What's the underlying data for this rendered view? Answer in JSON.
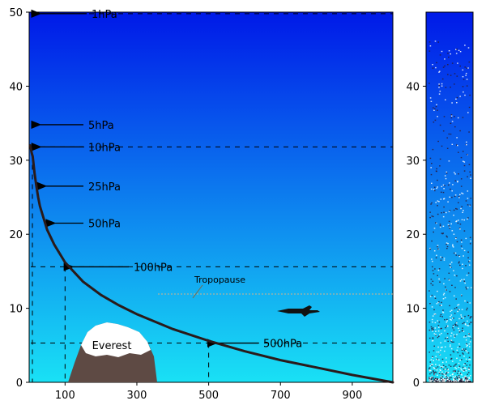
{
  "colors": {
    "sky_top": "#0019e8",
    "sky_bottom": "#19e1f5",
    "curve": "#2a1a1a",
    "mountain": "#5e4a44",
    "snow": "#ffffff",
    "tropopause_line": "#d2b48c"
  },
  "chart_data": {
    "type": "line",
    "left_panel": {
      "x_ticks": [
        "100",
        "300",
        "500",
        "700",
        "900"
      ],
      "x_tick_values": [
        100,
        300,
        500,
        700,
        900
      ],
      "y_ticks": [
        "0",
        "10",
        "20",
        "30",
        "40",
        "50"
      ],
      "y_tick_values": [
        0,
        10,
        20,
        30,
        40,
        50
      ],
      "xlim": [
        0,
        1013
      ],
      "ylim": [
        0,
        50
      ],
      "pressure_curve": {
        "x": [
          1013,
          900,
          800,
          700,
          600,
          500,
          400,
          300,
          250,
          200,
          150,
          100,
          70,
          50,
          30,
          25,
          20,
          15,
          10,
          7,
          5,
          3
        ],
        "y": [
          0,
          1.0,
          2.0,
          3.0,
          4.2,
          5.6,
          7.2,
          9.2,
          10.4,
          11.8,
          13.6,
          16.2,
          18.6,
          20.6,
          23.8,
          25.0,
          26.5,
          28.3,
          30.5,
          31.0,
          31.5,
          32.0
        ]
      },
      "pressure_levels": [
        {
          "label": "1hPa",
          "altitude": 49.8,
          "pressure": 1,
          "dashed_line": true
        },
        {
          "label": "5hPa",
          "altitude": 34.8,
          "pressure": 5,
          "dashed_line": false
        },
        {
          "label": "10hPa",
          "altitude": 31.8,
          "pressure": 10,
          "dashed_line": true
        },
        {
          "label": "25hPa",
          "altitude": 26.5,
          "pressure": 25,
          "dashed_line": false
        },
        {
          "label": "50hPa",
          "altitude": 21.5,
          "pressure": 50,
          "dashed_line": false
        },
        {
          "label": "100hPa",
          "altitude": 15.6,
          "pressure": 100,
          "dashed_line": true
        },
        {
          "label": "500hPa",
          "altitude": 5.3,
          "pressure": 500,
          "dashed_line": true
        }
      ],
      "tropopause": {
        "label": "Tropopause",
        "altitude": 11.9
      },
      "mountain": {
        "label": "Everest"
      }
    },
    "right_panel": {
      "y_ticks": [
        "0",
        "10",
        "20",
        "30",
        "40"
      ],
      "y_tick_values": [
        0,
        10,
        20,
        30,
        40
      ],
      "ylim": [
        0,
        50
      ]
    }
  }
}
